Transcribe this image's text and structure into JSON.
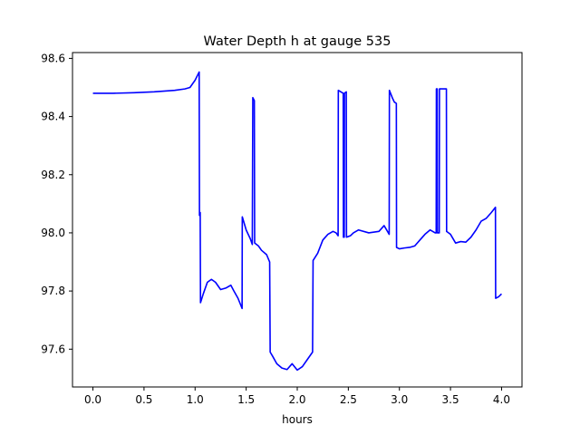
{
  "chart_data": {
    "type": "line",
    "title": "Water Depth h at gauge 535",
    "xlabel": "hours",
    "ylabel": "",
    "xlim": [
      -0.2,
      4.2
    ],
    "ylim": [
      97.47,
      98.62
    ],
    "x_ticks": [
      0.0,
      0.5,
      1.0,
      1.5,
      2.0,
      2.5,
      3.0,
      3.5,
      4.0
    ],
    "x_tick_labels": [
      "0.0",
      "0.5",
      "1.0",
      "1.5",
      "2.0",
      "2.5",
      "3.0",
      "3.5",
      "4.0"
    ],
    "y_ticks": [
      97.6,
      97.8,
      98.0,
      98.2,
      98.4,
      98.6
    ],
    "y_tick_labels": [
      "97.6",
      "97.8",
      "98.0",
      "98.2",
      "98.4",
      "98.6"
    ],
    "grid": false,
    "series": [
      {
        "color": "#0000ff",
        "points": [
          [
            0.0,
            98.48
          ],
          [
            0.2,
            98.48
          ],
          [
            0.4,
            98.482
          ],
          [
            0.6,
            98.485
          ],
          [
            0.8,
            98.49
          ],
          [
            0.9,
            98.495
          ],
          [
            0.95,
            98.5
          ],
          [
            1.0,
            98.525
          ],
          [
            1.04,
            98.553
          ],
          [
            1.043,
            98.06
          ],
          [
            1.05,
            98.07
          ],
          [
            1.053,
            97.76
          ],
          [
            1.08,
            97.79
          ],
          [
            1.12,
            97.83
          ],
          [
            1.16,
            97.84
          ],
          [
            1.2,
            97.83
          ],
          [
            1.25,
            97.805
          ],
          [
            1.3,
            97.81
          ],
          [
            1.35,
            97.82
          ],
          [
            1.38,
            97.8
          ],
          [
            1.42,
            97.775
          ],
          [
            1.46,
            97.74
          ],
          [
            1.462,
            98.055
          ],
          [
            1.5,
            98.01
          ],
          [
            1.54,
            97.98
          ],
          [
            1.56,
            97.96
          ],
          [
            1.565,
            98.465
          ],
          [
            1.58,
            98.455
          ],
          [
            1.583,
            97.965
          ],
          [
            1.62,
            97.955
          ],
          [
            1.65,
            97.94
          ],
          [
            1.7,
            97.925
          ],
          [
            1.73,
            97.9
          ],
          [
            1.735,
            97.59
          ],
          [
            1.76,
            97.575
          ],
          [
            1.8,
            97.55
          ],
          [
            1.85,
            97.535
          ],
          [
            1.9,
            97.53
          ],
          [
            1.95,
            97.55
          ],
          [
            2.0,
            97.528
          ],
          [
            2.05,
            97.54
          ],
          [
            2.1,
            97.565
          ],
          [
            2.15,
            97.59
          ],
          [
            2.155,
            97.905
          ],
          [
            2.2,
            97.93
          ],
          [
            2.25,
            97.975
          ],
          [
            2.3,
            97.995
          ],
          [
            2.35,
            98.005
          ],
          [
            2.38,
            98.0
          ],
          [
            2.4,
            97.99
          ],
          [
            2.402,
            98.49
          ],
          [
            2.45,
            98.48
          ],
          [
            2.452,
            97.985
          ],
          [
            2.46,
            97.985
          ],
          [
            2.462,
            98.48
          ],
          [
            2.48,
            98.485
          ],
          [
            2.482,
            97.985
          ],
          [
            2.52,
            97.99
          ],
          [
            2.55,
            98.0
          ],
          [
            2.6,
            98.01
          ],
          [
            2.7,
            98.0
          ],
          [
            2.8,
            98.005
          ],
          [
            2.85,
            98.025
          ],
          [
            2.9,
            97.995
          ],
          [
            2.902,
            98.49
          ],
          [
            2.93,
            98.465
          ],
          [
            2.95,
            98.45
          ],
          [
            2.97,
            98.445
          ],
          [
            2.972,
            97.95
          ],
          [
            3.0,
            97.945
          ],
          [
            3.05,
            97.948
          ],
          [
            3.1,
            97.95
          ],
          [
            3.15,
            97.955
          ],
          [
            3.2,
            97.975
          ],
          [
            3.25,
            97.995
          ],
          [
            3.3,
            98.01
          ],
          [
            3.35,
            98.0
          ],
          [
            3.36,
            98.0
          ],
          [
            3.362,
            98.495
          ],
          [
            3.37,
            98.495
          ],
          [
            3.372,
            98.0
          ],
          [
            3.39,
            98.0
          ],
          [
            3.392,
            98.495
          ],
          [
            3.46,
            98.495
          ],
          [
            3.462,
            98.005
          ],
          [
            3.5,
            97.995
          ],
          [
            3.55,
            97.965
          ],
          [
            3.6,
            97.97
          ],
          [
            3.65,
            97.968
          ],
          [
            3.7,
            97.985
          ],
          [
            3.75,
            98.01
          ],
          [
            3.8,
            98.04
          ],
          [
            3.85,
            98.05
          ],
          [
            3.9,
            98.07
          ],
          [
            3.94,
            98.088
          ],
          [
            3.942,
            97.775
          ],
          [
            3.97,
            97.78
          ],
          [
            4.0,
            97.79
          ]
        ]
      }
    ]
  }
}
